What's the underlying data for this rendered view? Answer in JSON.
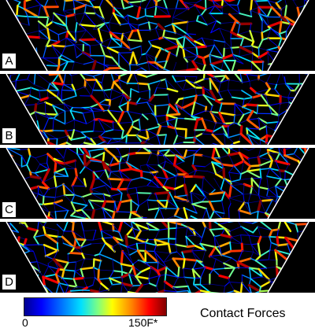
{
  "panels": [
    {
      "label": "A",
      "seed": 11
    },
    {
      "label": "B",
      "seed": 29
    },
    {
      "label": "C",
      "seed": 47
    },
    {
      "label": "D",
      "seed": 83
    }
  ],
  "colorbar": {
    "min_label": "0",
    "max_label": "150F*",
    "title": "Contact Forces",
    "colors": [
      "#00008f",
      "#0000ff",
      "#0080ff",
      "#00e0ff",
      "#80ff80",
      "#ffff00",
      "#ff8000",
      "#ff0000",
      "#800000"
    ]
  }
}
